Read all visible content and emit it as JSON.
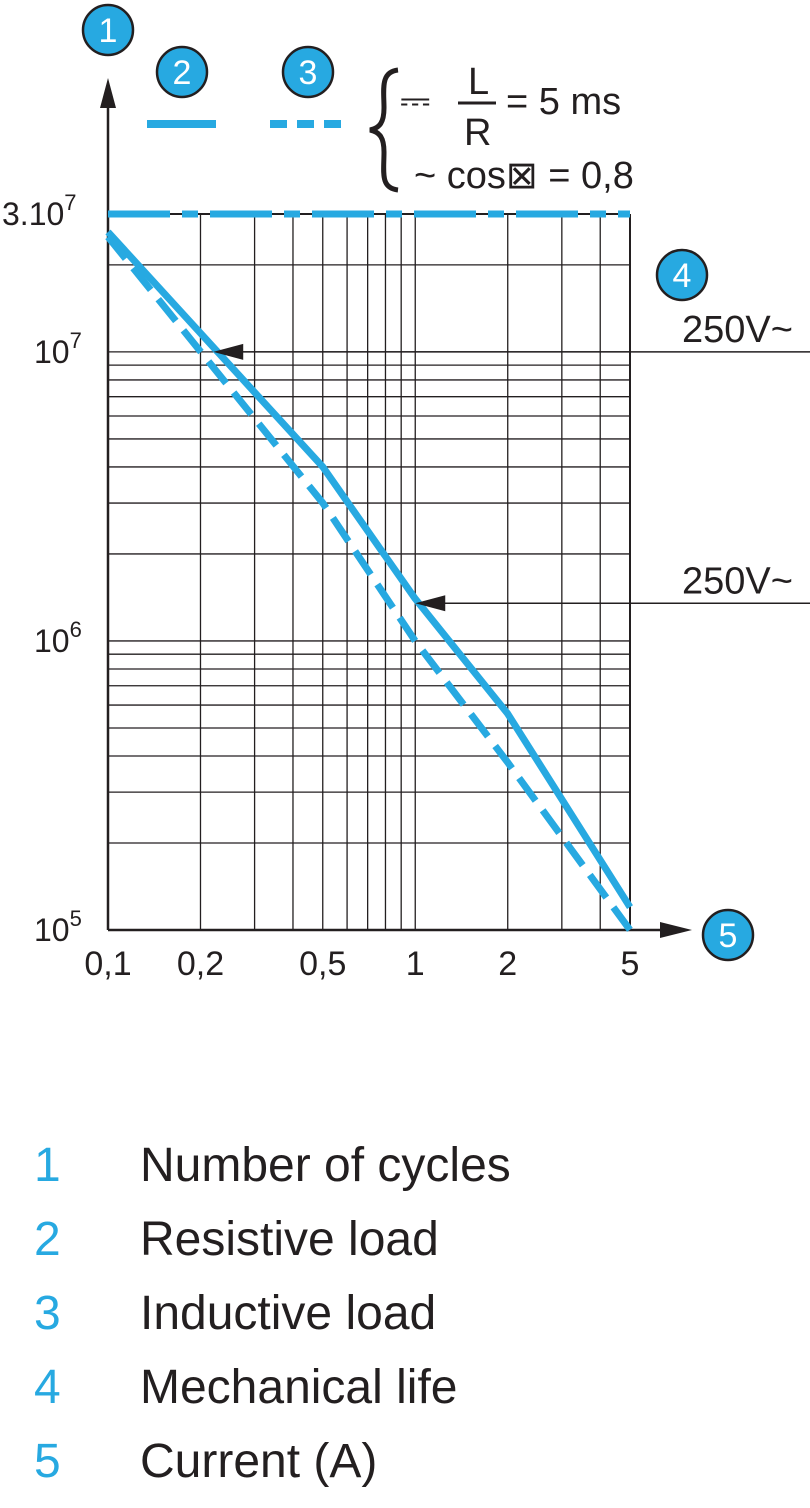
{
  "chart_data": {
    "type": "line",
    "xscale": "log",
    "yscale": "log",
    "xlim": [
      0.1,
      5
    ],
    "ylim": [
      100000,
      30000000
    ],
    "x_ticks": [
      {
        "value": 0.1,
        "label": "0,1"
      },
      {
        "value": 0.2,
        "label": "0,2"
      },
      {
        "value": 0.5,
        "label": "0,5"
      },
      {
        "value": 1,
        "label": "1"
      },
      {
        "value": 2,
        "label": "2"
      },
      {
        "value": 5,
        "label": "5"
      }
    ],
    "y_ticks": [
      {
        "value": 100000,
        "base": "10",
        "exp": "5"
      },
      {
        "value": 1000000,
        "base": "10",
        "exp": "6"
      },
      {
        "value": 10000000,
        "base": "10",
        "exp": "7"
      },
      {
        "value": 30000000,
        "base": "3.10",
        "exp": "7"
      }
    ],
    "grid": true,
    "series": [
      {
        "badge": "2",
        "style": "solid",
        "points": [
          [
            0.1,
            26000000
          ],
          [
            0.5,
            4000000
          ],
          [
            1,
            1400000
          ],
          [
            2,
            560000
          ],
          [
            5,
            120000
          ]
        ]
      },
      {
        "badge": "3",
        "style": "dashed",
        "points": [
          [
            0.1,
            25000000
          ],
          [
            0.5,
            3000000
          ],
          [
            1,
            1000000
          ],
          [
            2,
            380000
          ],
          [
            5,
            100000
          ]
        ]
      },
      {
        "badge": "4",
        "style": "dash-dot",
        "points": [
          [
            0.1,
            30000000
          ],
          [
            5,
            30000000
          ]
        ]
      }
    ],
    "annotations": [
      {
        "text": "250V~",
        "x": 0.22,
        "y": 10000000
      },
      {
        "text": "250V~",
        "x": 1,
        "y": 1350000
      }
    ],
    "load_conditions": {
      "dc_symbol": "⎓",
      "ratio_numerator": "L",
      "ratio_denominator": "R",
      "dc_value": "= 5 ms",
      "ac_text": "~ cos⊠ = 0,8"
    },
    "axis_badges": {
      "y": "1",
      "x": "5"
    }
  },
  "legend": [
    {
      "num": "1",
      "label": "Number of cycles"
    },
    {
      "num": "2",
      "label": "Resistive load"
    },
    {
      "num": "3",
      "label": "Inductive load"
    },
    {
      "num": "4",
      "label": "Mechanical life"
    },
    {
      "num": "5",
      "label": "Current (A)"
    }
  ],
  "colors": {
    "series": "#27a9e1",
    "badge": "#27a9e1",
    "text": "#231f20",
    "grid": "#231f20"
  }
}
